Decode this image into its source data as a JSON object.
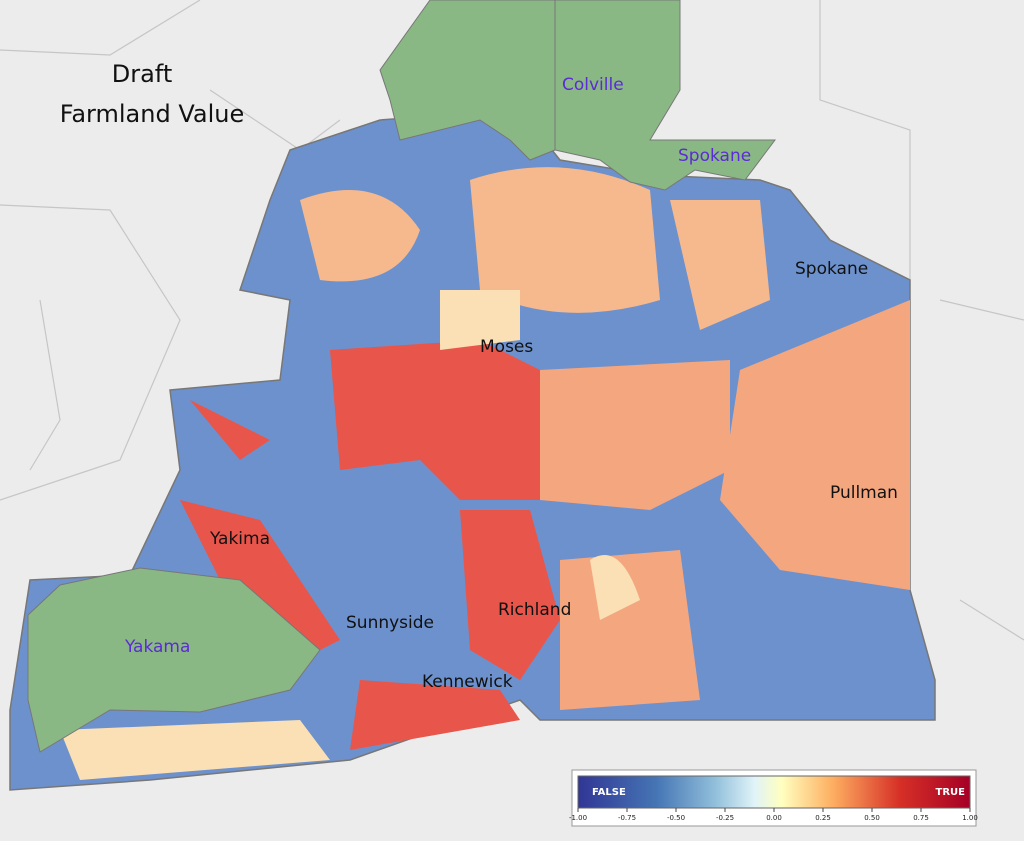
{
  "title": [
    "Draft",
    "Farmland Value"
  ],
  "places": [
    "Moses",
    "Spokane",
    "Pullman",
    "Yakima",
    "Sunnyside",
    "Richland",
    "Kennewick"
  ],
  "reservations": [
    "Colville",
    "Spokane",
    "Yakama"
  ],
  "legend": {
    "low": "FALSE",
    "high": "TRUE",
    "range": [
      -1,
      1
    ],
    "ticks": [
      {
        "value": -1,
        "label": "-1.00"
      },
      {
        "value": -0.75,
        "label": "-0.75"
      },
      {
        "value": -0.5,
        "label": "-0.50"
      },
      {
        "value": -0.25,
        "label": "-0.25"
      },
      {
        "value": 0,
        "label": "0.00"
      },
      {
        "value": 0.25,
        "label": "0.25"
      },
      {
        "value": 0.5,
        "label": "0.50"
      },
      {
        "value": 0.75,
        "label": "0.75"
      },
      {
        "value": 1,
        "label": "1.00"
      }
    ]
  }
}
